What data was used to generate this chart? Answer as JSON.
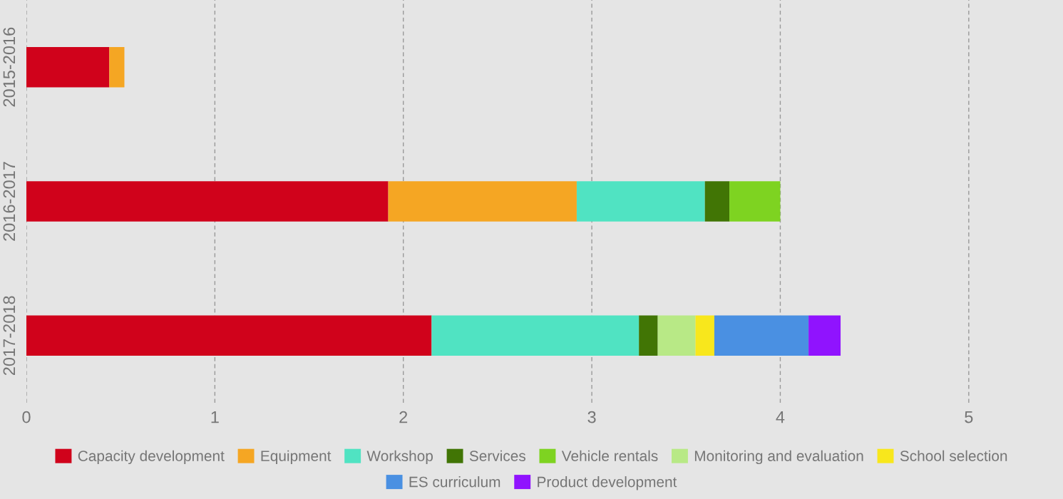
{
  "chart_data": {
    "type": "bar",
    "orientation": "horizontal",
    "stacked": true,
    "categories": [
      "2015-2016",
      "2016-2017",
      "2017-2018"
    ],
    "series": [
      {
        "name": "Capacity development",
        "color": "#d0021b",
        "values": [
          0.44,
          1.92,
          2.15
        ]
      },
      {
        "name": "Equipment",
        "color": "#f5a623",
        "values": [
          0.08,
          1.0,
          null
        ]
      },
      {
        "name": "Workshop",
        "color": "#50e3c2",
        "values": [
          null,
          0.68,
          1.1
        ]
      },
      {
        "name": "Services",
        "color": "#417505",
        "values": [
          null,
          0.13,
          0.1
        ]
      },
      {
        "name": "Vehicle rentals",
        "color": "#7ed321",
        "values": [
          null,
          0.27,
          null
        ]
      },
      {
        "name": "Monitoring and evaluation",
        "color": "#b8e986",
        "values": [
          null,
          null,
          0.2
        ]
      },
      {
        "name": "School selection",
        "color": "#f8e71c",
        "values": [
          null,
          null,
          0.1
        ]
      },
      {
        "name": "ES curriculum",
        "color": "#4a90e2",
        "values": [
          null,
          null,
          0.5
        ]
      },
      {
        "name": "Product development",
        "color": "#9013fe",
        "values": [
          null,
          null,
          0.17
        ]
      }
    ],
    "xlim": [
      0,
      5.5
    ],
    "xticks": [
      0,
      1,
      2,
      3,
      4,
      5
    ],
    "grid": "x",
    "legend": "bottom"
  }
}
